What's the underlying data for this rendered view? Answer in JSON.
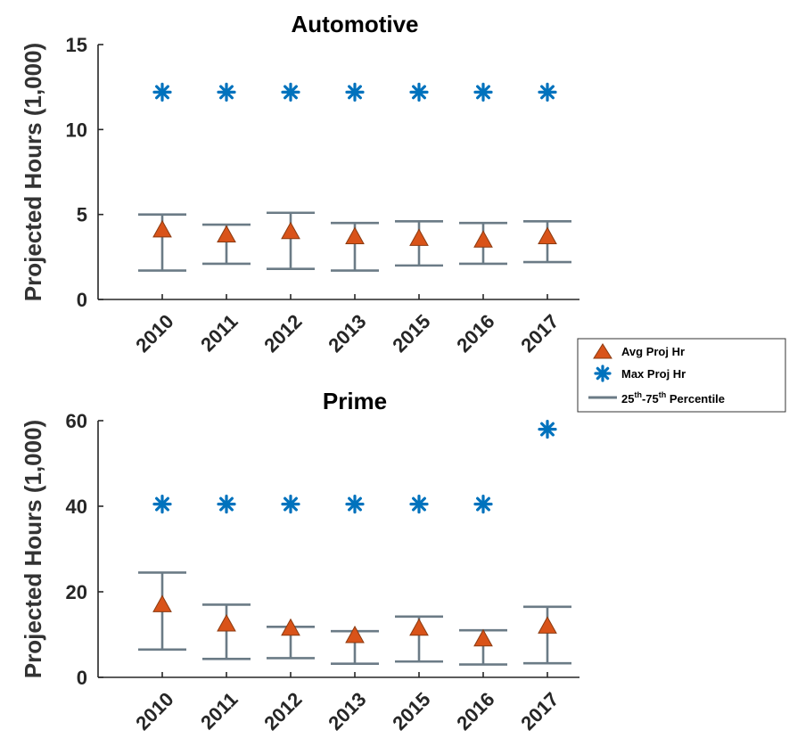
{
  "chart_data": [
    {
      "type": "scatter",
      "title": "Automotive",
      "xlabel": "",
      "ylabel": "Projected Hours (1,000)",
      "ylim": [
        0,
        15
      ],
      "yticks": [
        "0",
        "5",
        "10",
        "15"
      ],
      "categories": [
        "2010",
        "2011",
        "2012",
        "2013",
        "2015",
        "2016",
        "2017"
      ],
      "series": [
        {
          "name": "Avg Proj Hr",
          "marker": "triangle",
          "color": "#d95319",
          "values": [
            4.1,
            3.8,
            4.0,
            3.7,
            3.6,
            3.5,
            3.7
          ]
        },
        {
          "name": "Max Proj Hr",
          "marker": "asterisk",
          "color": "#0072bd",
          "values": [
            12.2,
            12.2,
            12.2,
            12.2,
            12.2,
            12.2,
            12.2
          ]
        },
        {
          "name": "25th-75th Percentile",
          "marker": "errorbar",
          "color": "#6b7b86",
          "low": [
            1.7,
            2.1,
            1.8,
            1.7,
            2.0,
            2.1,
            2.2
          ],
          "high": [
            5.0,
            4.4,
            5.1,
            4.5,
            4.6,
            4.5,
            4.6
          ]
        }
      ]
    },
    {
      "type": "scatter",
      "title": "Prime",
      "xlabel": "",
      "ylabel": "Projected Hours (1,000)",
      "ylim": [
        0,
        60
      ],
      "yticks": [
        "0",
        "20",
        "40",
        "60"
      ],
      "categories": [
        "2010",
        "2011",
        "2012",
        "2013",
        "2015",
        "2016",
        "2017"
      ],
      "series": [
        {
          "name": "Avg Proj Hr",
          "marker": "triangle",
          "color": "#d95319",
          "values": [
            17.0,
            12.5,
            11.5,
            9.8,
            11.5,
            9.0,
            12.0
          ]
        },
        {
          "name": "Max Proj Hr",
          "marker": "asterisk",
          "color": "#0072bd",
          "values": [
            40.5,
            40.5,
            40.5,
            40.5,
            40.5,
            40.5,
            58.0
          ]
        },
        {
          "name": "25th-75th Percentile",
          "marker": "errorbar",
          "color": "#6b7b86",
          "low": [
            6.5,
            4.3,
            4.5,
            3.2,
            3.7,
            3.0,
            3.3
          ],
          "high": [
            24.5,
            17.0,
            11.8,
            10.8,
            14.2,
            11.0,
            16.5
          ]
        }
      ]
    }
  ],
  "legend": {
    "placement": "right-middle",
    "items": [
      {
        "label": "Avg Proj Hr",
        "icon": "triangle-icon"
      },
      {
        "label": "Max Proj Hr",
        "icon": "asterisk-icon"
      },
      {
        "label_prefix": "25",
        "sup1": "th",
        "mid": "-75",
        "sup2": "th",
        "suffix": " Percentile",
        "icon": "line-icon"
      }
    ]
  }
}
